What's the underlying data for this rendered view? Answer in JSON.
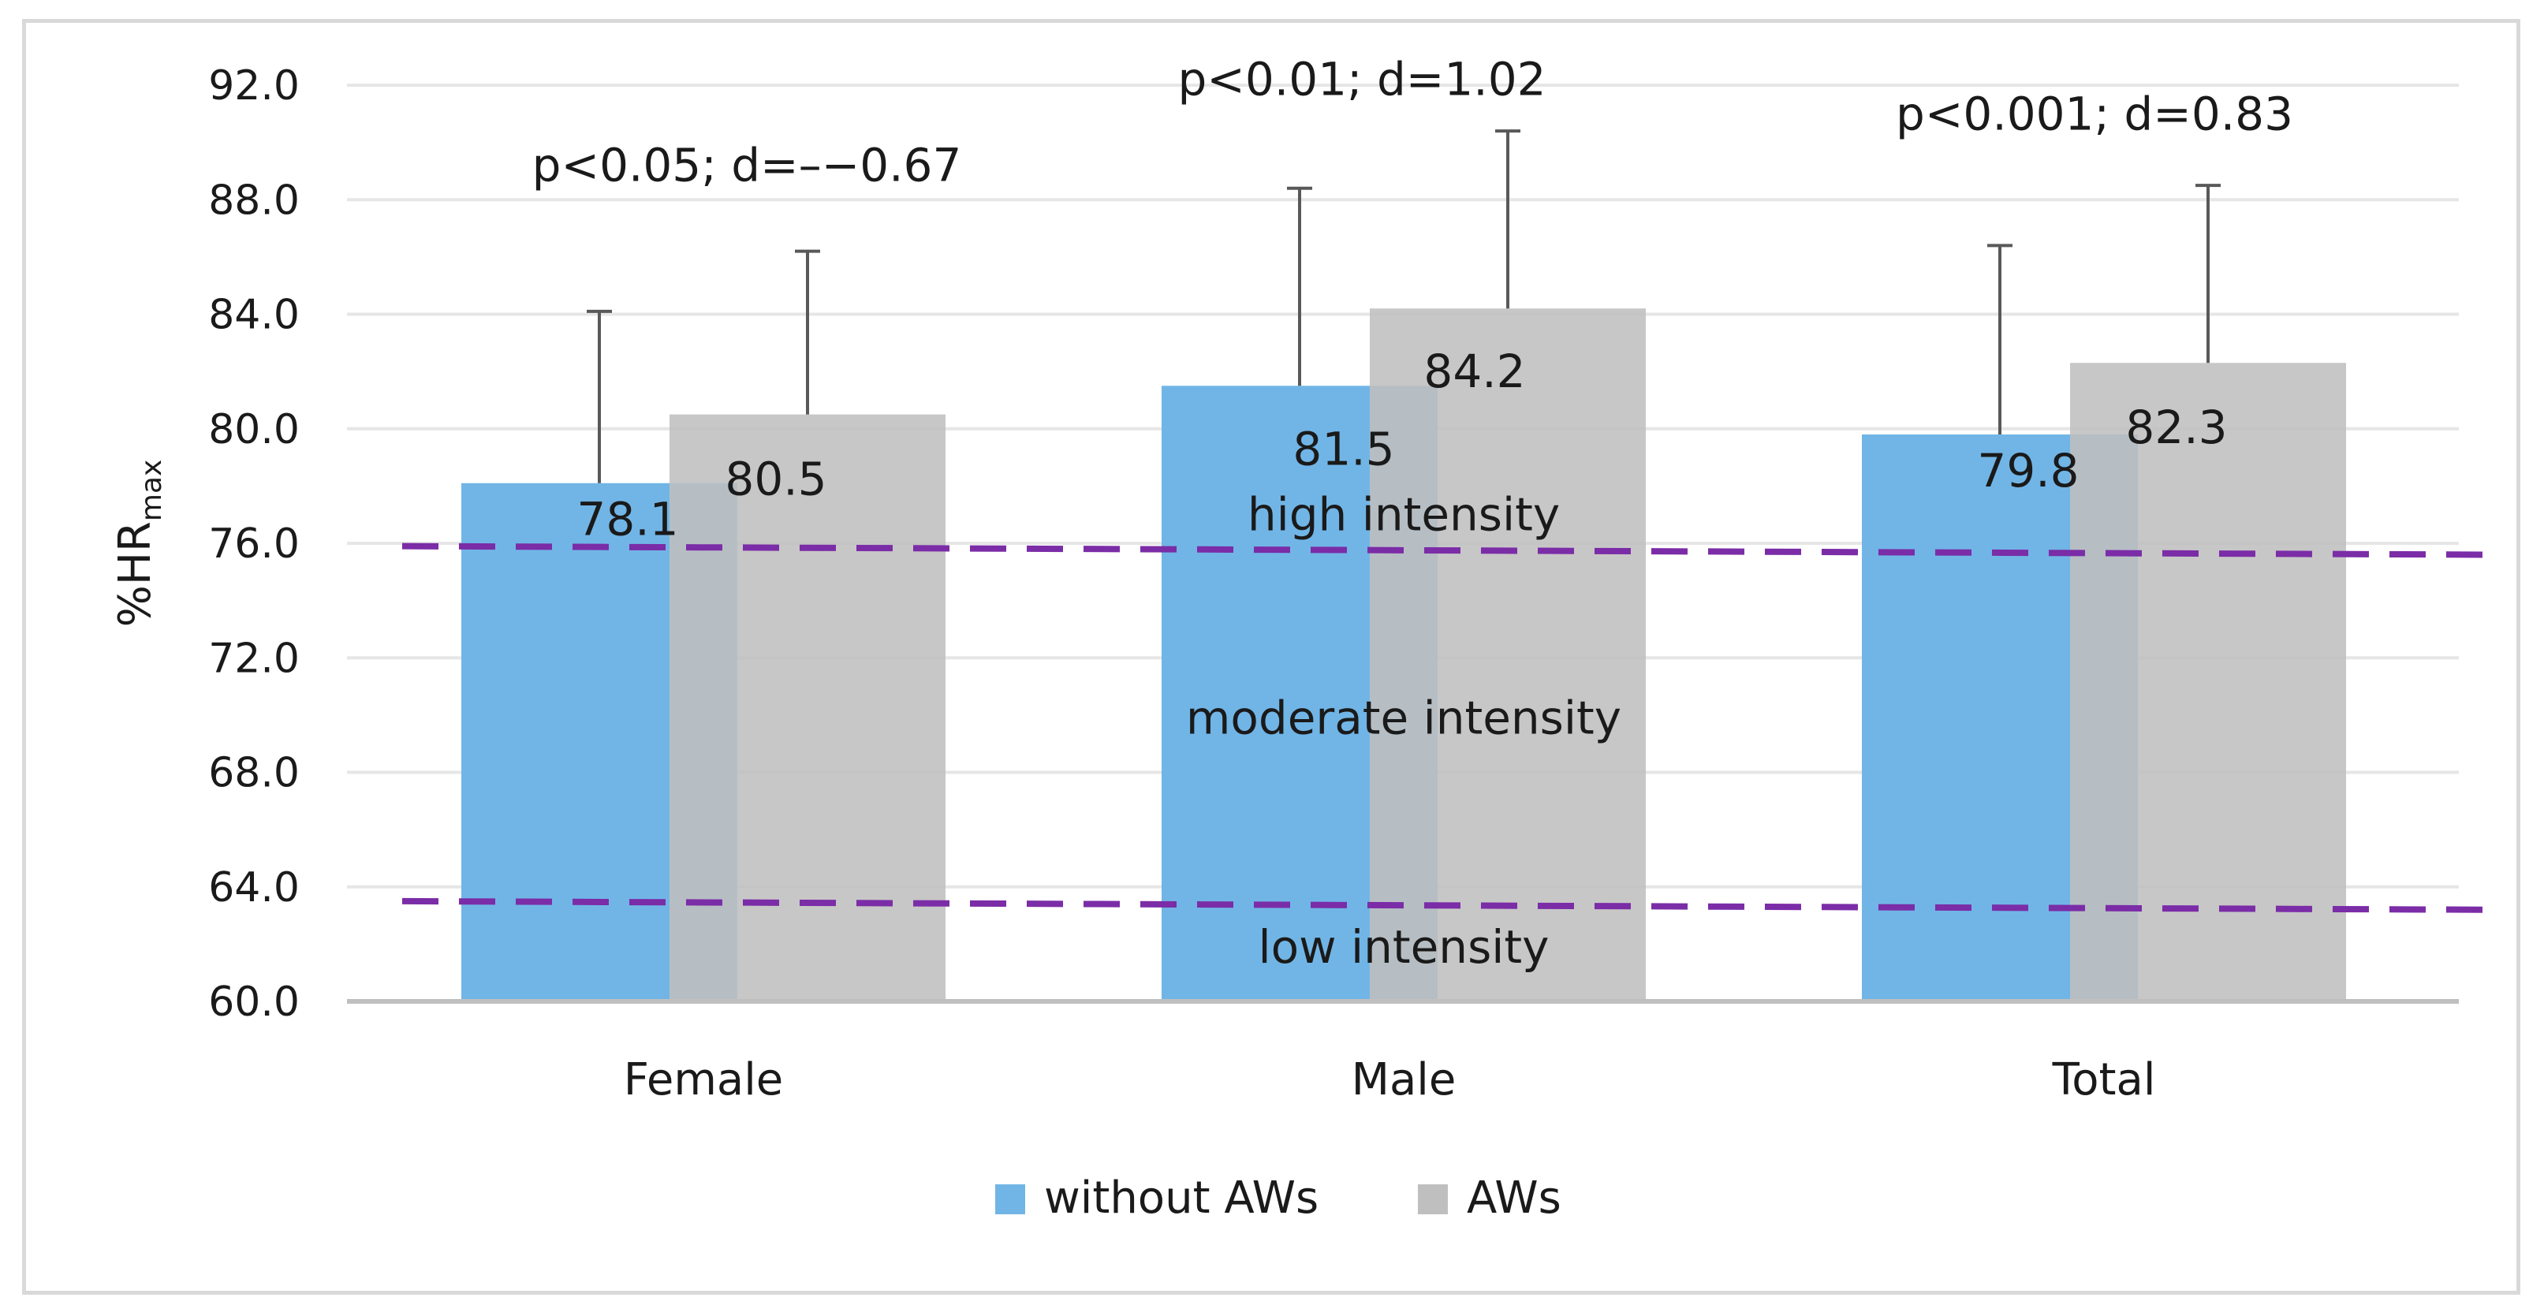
{
  "chart_data": {
    "type": "bar",
    "title": "",
    "xlabel": "",
    "ylabel": "%HR",
    "ylabel_sub": "max",
    "ylim": [
      60,
      92
    ],
    "yticks": [
      60,
      64,
      68,
      72,
      76,
      80,
      84,
      88,
      92
    ],
    "ytick_labels": [
      "60.0",
      "64.0",
      "68.0",
      "72.0",
      "76.0",
      "80.0",
      "84.0",
      "88.0",
      "92.0"
    ],
    "grid": true,
    "legend_position": "bottom",
    "categories": [
      "Female",
      "Male",
      "Total"
    ],
    "series": [
      {
        "name": "without AWs",
        "color": "#71b5e6",
        "values": [
          78.1,
          81.5,
          79.8
        ],
        "labels": [
          "78.1",
          "81.5",
          "79.8"
        ],
        "error_upper": [
          84.1,
          88.4,
          86.4
        ]
      },
      {
        "name": "AWs",
        "color": "#bfbfbf",
        "values": [
          80.5,
          84.2,
          82.3
        ],
        "labels": [
          "80.5",
          "84.2",
          "82.3"
        ],
        "error_upper": [
          86.2,
          90.4,
          88.5
        ]
      }
    ],
    "annotations": [
      {
        "text": "p<0.05; d=–−0.67",
        "category": "Female",
        "y": 89.2
      },
      {
        "text": "p<0.01; d=1.02",
        "category": "Male",
        "y": 92.2
      },
      {
        "text": "p<0.001; d=0.83",
        "category": "Total",
        "y": 91.0
      }
    ],
    "reference_lines": [
      {
        "y_start": 75.9,
        "y_end": 75.6,
        "color": "#7b2ca7",
        "style": "dashed"
      },
      {
        "y_start": 63.5,
        "y_end": 63.2,
        "color": "#7b2ca7",
        "style": "dashed"
      }
    ],
    "zone_labels": [
      {
        "text": "high intensity",
        "y": 77.0
      },
      {
        "text": "moderate intensity",
        "y": 69.9
      },
      {
        "text": "low intensity",
        "y": 61.9
      }
    ]
  }
}
